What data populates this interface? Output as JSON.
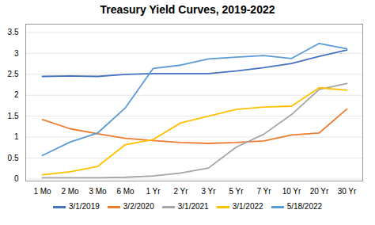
{
  "chart_data": {
    "type": "line",
    "title": "Treasury Yield Curves, 2019-2022",
    "categories": [
      "1 Mo",
      "2 Mo",
      "3 Mo",
      "6 Mo",
      "1 Yr",
      "2 Yr",
      "3 Yr",
      "5 Yr",
      "7 Yr",
      "10 Yr",
      "20 Yr",
      "30 Yr"
    ],
    "series": [
      {
        "name": "3/1/2019",
        "color": "#4472c4",
        "values": [
          2.45,
          2.46,
          2.45,
          2.5,
          2.52,
          2.52,
          2.52,
          2.58,
          2.66,
          2.76,
          2.93,
          3.08
        ]
      },
      {
        "name": "3/2/2020",
        "color": "#ed7d31",
        "values": [
          1.42,
          1.2,
          1.08,
          0.97,
          0.92,
          0.87,
          0.85,
          0.87,
          0.91,
          1.05,
          1.1,
          1.67
        ]
      },
      {
        "name": "3/1/2021",
        "color": "#a5a5a5",
        "values": [
          0.03,
          0.03,
          0.03,
          0.04,
          0.07,
          0.14,
          0.26,
          0.76,
          1.07,
          1.54,
          2.14,
          2.28
        ]
      },
      {
        "name": "3/1/2022",
        "color": "#ffc000",
        "values": [
          0.1,
          0.17,
          0.3,
          0.82,
          0.94,
          1.34,
          1.5,
          1.66,
          1.72,
          1.74,
          2.18,
          2.12
        ]
      },
      {
        "name": "5/18/2022",
        "color": "#5b9bd5",
        "values": [
          0.56,
          0.88,
          1.1,
          1.7,
          2.64,
          2.72,
          2.87,
          2.91,
          2.95,
          2.88,
          3.24,
          3.11
        ]
      }
    ],
    "ylim": [
      -0.05,
      3.7
    ],
    "yticks": [
      0,
      0.5,
      1,
      1.5,
      2,
      2.5,
      3,
      3.5
    ],
    "grid": true,
    "legend": "bottom"
  }
}
